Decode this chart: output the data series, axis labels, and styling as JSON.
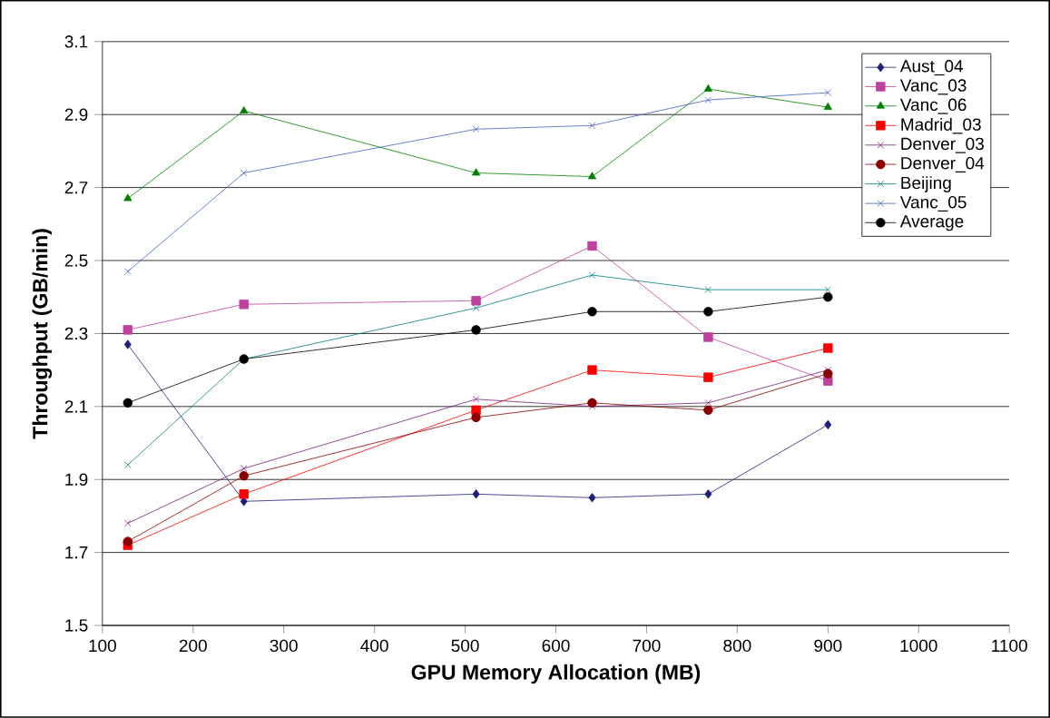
{
  "chart_data": {
    "type": "line",
    "xlabel": "GPU Memory Allocation (MB)",
    "ylabel": "Throughput (GB/min)",
    "x": [
      128,
      256,
      512,
      640,
      768,
      900
    ],
    "xlim": [
      100,
      1100
    ],
    "xticks": [
      100,
      200,
      300,
      400,
      500,
      600,
      700,
      800,
      900,
      1000,
      1100
    ],
    "ylim": [
      1.5,
      3.1
    ],
    "yticks": [
      1.5,
      1.7,
      1.9,
      2.1,
      2.3,
      2.5,
      2.7,
      2.9,
      3.1
    ],
    "grid": "y",
    "legend": "top right",
    "series": [
      {
        "name": "Aust_04",
        "color": "#1f1f7a",
        "marker": "diamond",
        "values": [
          2.27,
          1.84,
          1.86,
          1.85,
          1.86,
          2.05
        ]
      },
      {
        "name": "Vanc_03",
        "color": "#c040a0",
        "marker": "square",
        "values": [
          2.31,
          2.38,
          2.39,
          2.54,
          2.29,
          2.17
        ]
      },
      {
        "name": "Vanc_06",
        "color": "#008000",
        "marker": "triangle",
        "values": [
          2.67,
          2.91,
          2.74,
          2.73,
          2.97,
          2.92
        ]
      },
      {
        "name": "Madrid_03",
        "color": "#ff0000",
        "marker": "square",
        "values": [
          1.72,
          1.86,
          2.09,
          2.2,
          2.18,
          2.26
        ]
      },
      {
        "name": "Denver_03",
        "color": "#7b1f7b",
        "marker": "cross",
        "values": [
          1.78,
          1.93,
          2.12,
          2.1,
          2.11,
          2.2
        ]
      },
      {
        "name": "Denver_04",
        "color": "#8b0000",
        "marker": "circle",
        "values": [
          1.73,
          1.91,
          2.07,
          2.11,
          2.09,
          2.19
        ]
      },
      {
        "name": "Beijing",
        "color": "#008080",
        "marker": "cross",
        "values": [
          1.94,
          2.23,
          2.37,
          2.46,
          2.42,
          2.42
        ]
      },
      {
        "name": "Vanc_05",
        "color": "#4060c0",
        "marker": "cross",
        "values": [
          2.47,
          2.74,
          2.86,
          2.87,
          2.94,
          2.96
        ]
      },
      {
        "name": "Average",
        "color": "#000000",
        "marker": "circle",
        "values": [
          2.11,
          2.23,
          2.31,
          2.36,
          2.36,
          2.4
        ]
      }
    ]
  }
}
